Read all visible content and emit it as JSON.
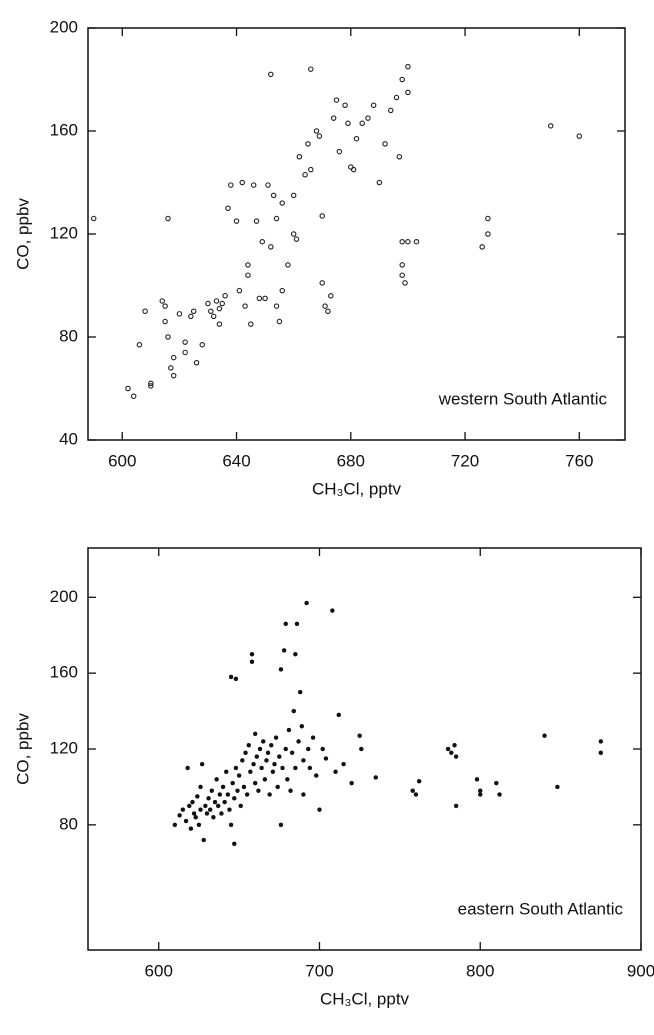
{
  "chart_data": [
    {
      "type": "scatter",
      "marker": "open",
      "color": "#222222",
      "x_label": "CH₃Cl, pptv",
      "y_label": "CO, ppbv",
      "annotation": "western South Atlantic",
      "xlim": [
        588,
        776
      ],
      "ylim": [
        40,
        200
      ],
      "xticks": [
        600,
        640,
        680,
        720,
        760
      ],
      "yticks": [
        40,
        80,
        120,
        160,
        200
      ],
      "x": [
        590,
        602,
        604,
        606,
        608,
        610,
        610,
        614,
        615,
        615,
        616,
        616,
        617,
        618,
        618,
        620,
        622,
        622,
        624,
        625,
        626,
        628,
        630,
        631,
        632,
        633,
        634,
        634,
        635,
        636,
        637,
        638,
        640,
        641,
        642,
        643,
        644,
        644,
        645,
        646,
        647,
        648,
        649,
        650,
        651,
        652,
        652,
        653,
        654,
        654,
        655,
        656,
        656,
        658,
        660,
        660,
        661,
        662,
        664,
        665,
        666,
        666,
        668,
        669,
        670,
        670,
        671,
        672,
        673,
        674,
        675,
        676,
        678,
        679,
        680,
        681,
        682,
        684,
        686,
        688,
        690,
        692,
        694,
        696,
        697,
        698,
        698,
        698,
        698,
        699,
        700,
        700,
        700,
        703,
        726,
        728,
        728,
        750,
        760
      ],
      "values": [
        126,
        60,
        57,
        77,
        90,
        61,
        62,
        94,
        92,
        86,
        80,
        126,
        68,
        72,
        65,
        89,
        78,
        74,
        88,
        90,
        70,
        77,
        93,
        90,
        88,
        94,
        91,
        85,
        93,
        96,
        130,
        139,
        125,
        98,
        140,
        92,
        108,
        104,
        85,
        139,
        125,
        95,
        117,
        95,
        139,
        182,
        115,
        135,
        126,
        92,
        86,
        132,
        98,
        108,
        135,
        120,
        118,
        150,
        143,
        155,
        184,
        145,
        160,
        158,
        127,
        101,
        92,
        90,
        96,
        165,
        172,
        152,
        170,
        163,
        146,
        145,
        157,
        163,
        165,
        170,
        140,
        155,
        168,
        173,
        150,
        180,
        117,
        108,
        104,
        101,
        185,
        175,
        117,
        117,
        115,
        120,
        126,
        162,
        158
      ]
    },
    {
      "type": "scatter",
      "marker": "filled",
      "color": "#111111",
      "x_label": "CH₃Cl, pptv",
      "y_label": "CO, ppbv",
      "annotation": "eastern South Atlantic",
      "xlim": [
        556,
        900
      ],
      "ylim": [
        14,
        226
      ],
      "xticks": [
        600,
        700,
        800,
        900
      ],
      "yticks": [
        80,
        120,
        160,
        200
      ],
      "x": [
        610,
        613,
        615,
        617,
        618,
        619,
        620,
        621,
        622,
        623,
        624,
        625,
        626,
        626,
        627,
        628,
        629,
        630,
        631,
        632,
        633,
        634,
        635,
        636,
        637,
        638,
        639,
        640,
        641,
        642,
        643,
        644,
        645,
        645,
        646,
        647,
        647,
        648,
        648,
        649,
        650,
        651,
        652,
        653,
        654,
        655,
        656,
        657,
        658,
        658,
        659,
        660,
        660,
        661,
        662,
        663,
        664,
        665,
        666,
        667,
        668,
        669,
        670,
        671,
        672,
        673,
        674,
        675,
        676,
        676,
        677,
        678,
        679,
        679,
        680,
        681,
        682,
        683,
        684,
        685,
        685,
        686,
        687,
        688,
        689,
        690,
        690,
        692,
        693,
        694,
        696,
        698,
        700,
        702,
        704,
        708,
        710,
        712,
        715,
        720,
        725,
        726,
        735,
        758,
        760,
        762,
        780,
        782,
        784,
        785,
        785,
        798,
        800,
        800,
        810,
        812,
        840,
        848,
        875,
        875
      ],
      "values": [
        80,
        85,
        88,
        82,
        110,
        90,
        78,
        92,
        86,
        84,
        95,
        80,
        88,
        100,
        112,
        72,
        90,
        86,
        94,
        88,
        98,
        84,
        92,
        104,
        90,
        96,
        86,
        100,
        92,
        108,
        96,
        88,
        158,
        80,
        102,
        94,
        70,
        110,
        157,
        98,
        106,
        90,
        114,
        100,
        118,
        96,
        122,
        108,
        170,
        166,
        112,
        128,
        102,
        116,
        98,
        120,
        110,
        124,
        104,
        114,
        118,
        96,
        122,
        108,
        112,
        126,
        100,
        116,
        80,
        162,
        110,
        172,
        186,
        120,
        104,
        130,
        98,
        118,
        140,
        170,
        110,
        186,
        124,
        150,
        132,
        114,
        96,
        197,
        120,
        110,
        126,
        106,
        88,
        120,
        115,
        193,
        108,
        138,
        112,
        102,
        127,
        120,
        105,
        98,
        96,
        103,
        120,
        118,
        122,
        116,
        90,
        104,
        98,
        96,
        102,
        96,
        127,
        100,
        124,
        118
      ]
    }
  ]
}
